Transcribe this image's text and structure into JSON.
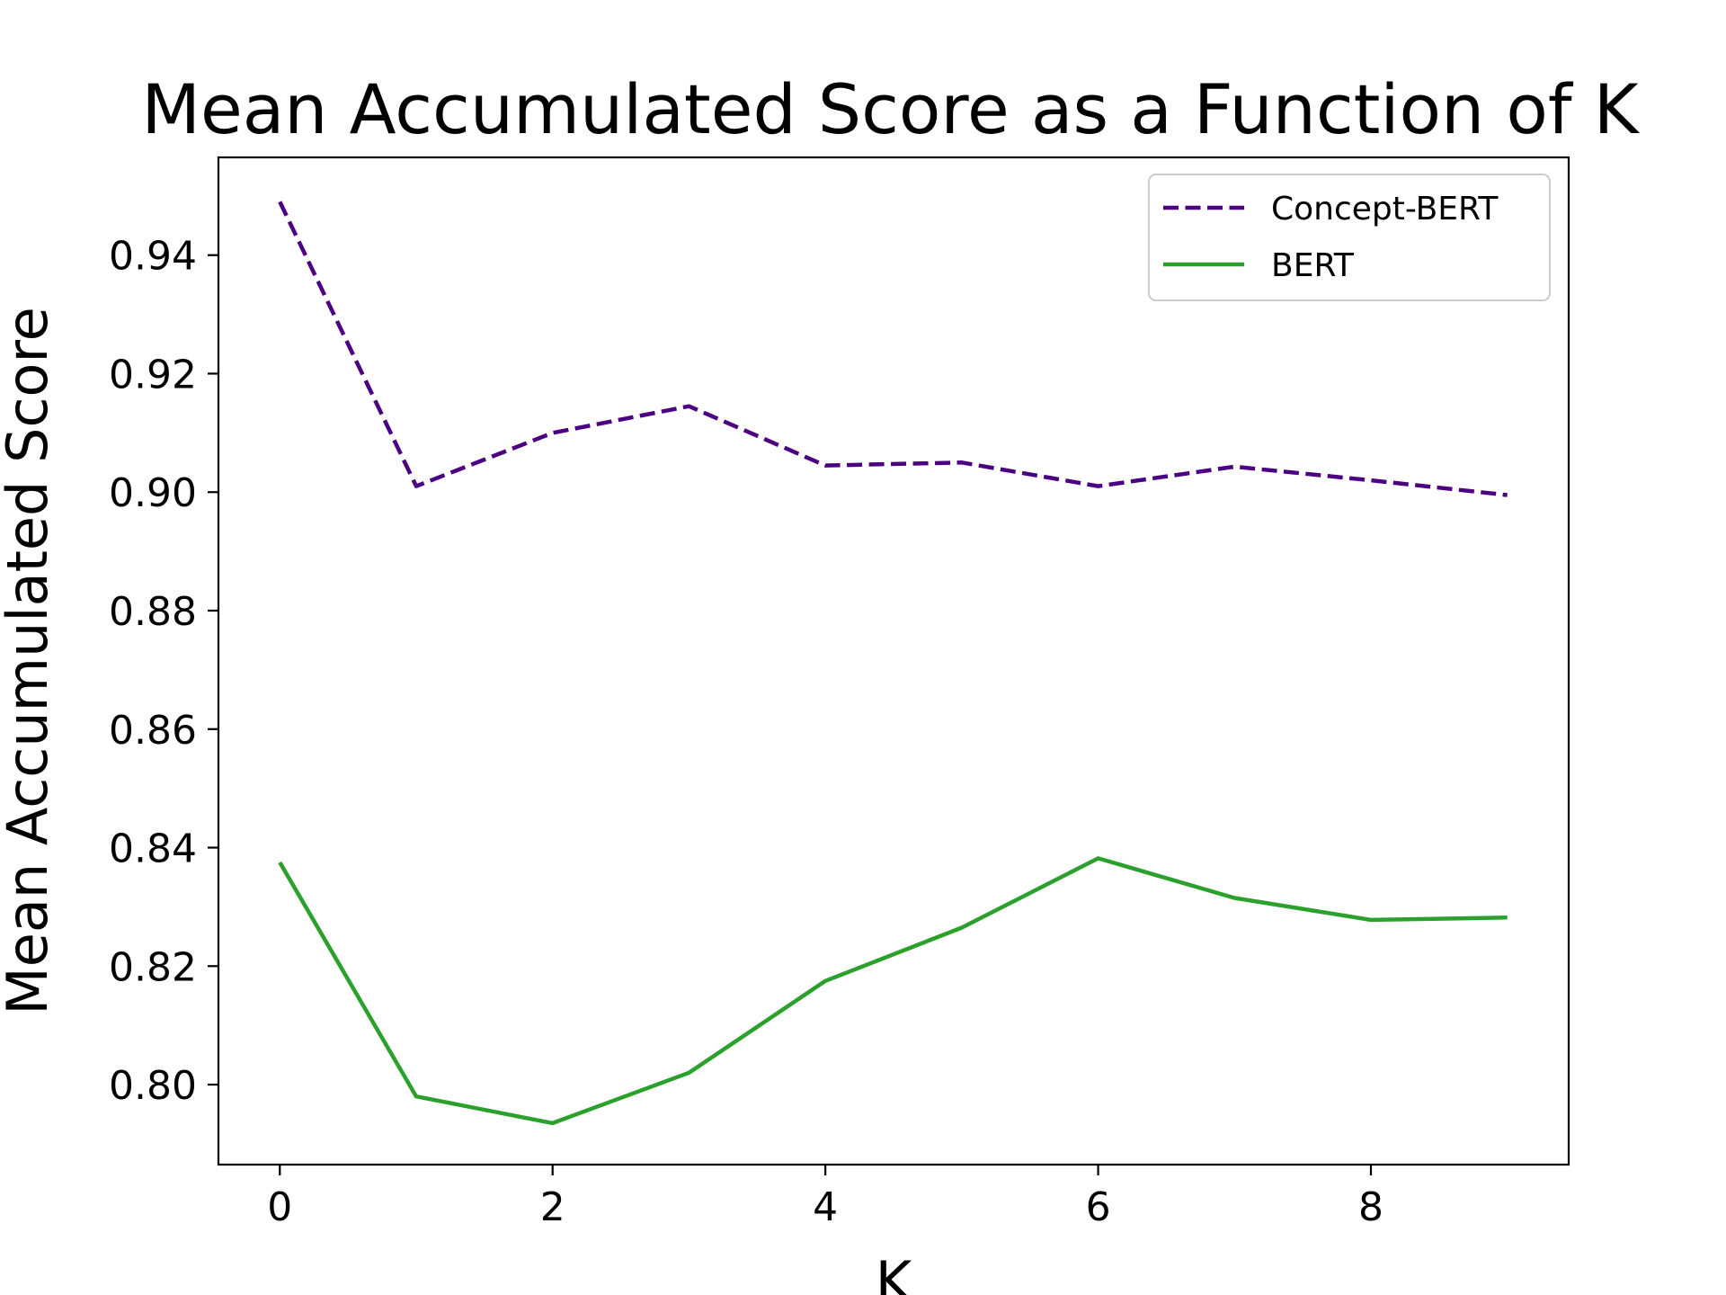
{
  "chart_data": {
    "type": "line",
    "title": "Mean Accumulated Score as a Function of K",
    "xlabel": "K",
    "ylabel": "Mean Accumulated Score",
    "x": [
      0,
      1,
      2,
      3,
      4,
      5,
      6,
      7,
      8,
      9
    ],
    "xlim": [
      -0.45,
      9.45
    ],
    "ylim": [
      0.7865,
      0.9565
    ],
    "xticks": [
      0,
      2,
      4,
      6,
      8
    ],
    "yticks": [
      0.8,
      0.82,
      0.84,
      0.86,
      0.88,
      0.9,
      0.92,
      0.94
    ],
    "ytick_labels": [
      "0.80",
      "0.82",
      "0.84",
      "0.86",
      "0.88",
      "0.90",
      "0.92",
      "0.94"
    ],
    "grid": false,
    "legend_position": "top-right",
    "series": [
      {
        "name": "Concept-BERT",
        "color": "#4b0082",
        "style": "dashed",
        "values": [
          0.949,
          0.901,
          0.91,
          0.9145,
          0.9045,
          0.905,
          0.901,
          0.9043,
          0.902,
          0.8995
        ]
      },
      {
        "name": "BERT",
        "color": "#2ca02c",
        "style": "solid",
        "values": [
          0.8375,
          0.798,
          0.7935,
          0.802,
          0.8175,
          0.8265,
          0.8382,
          0.8315,
          0.8278,
          0.8282
        ]
      }
    ]
  }
}
